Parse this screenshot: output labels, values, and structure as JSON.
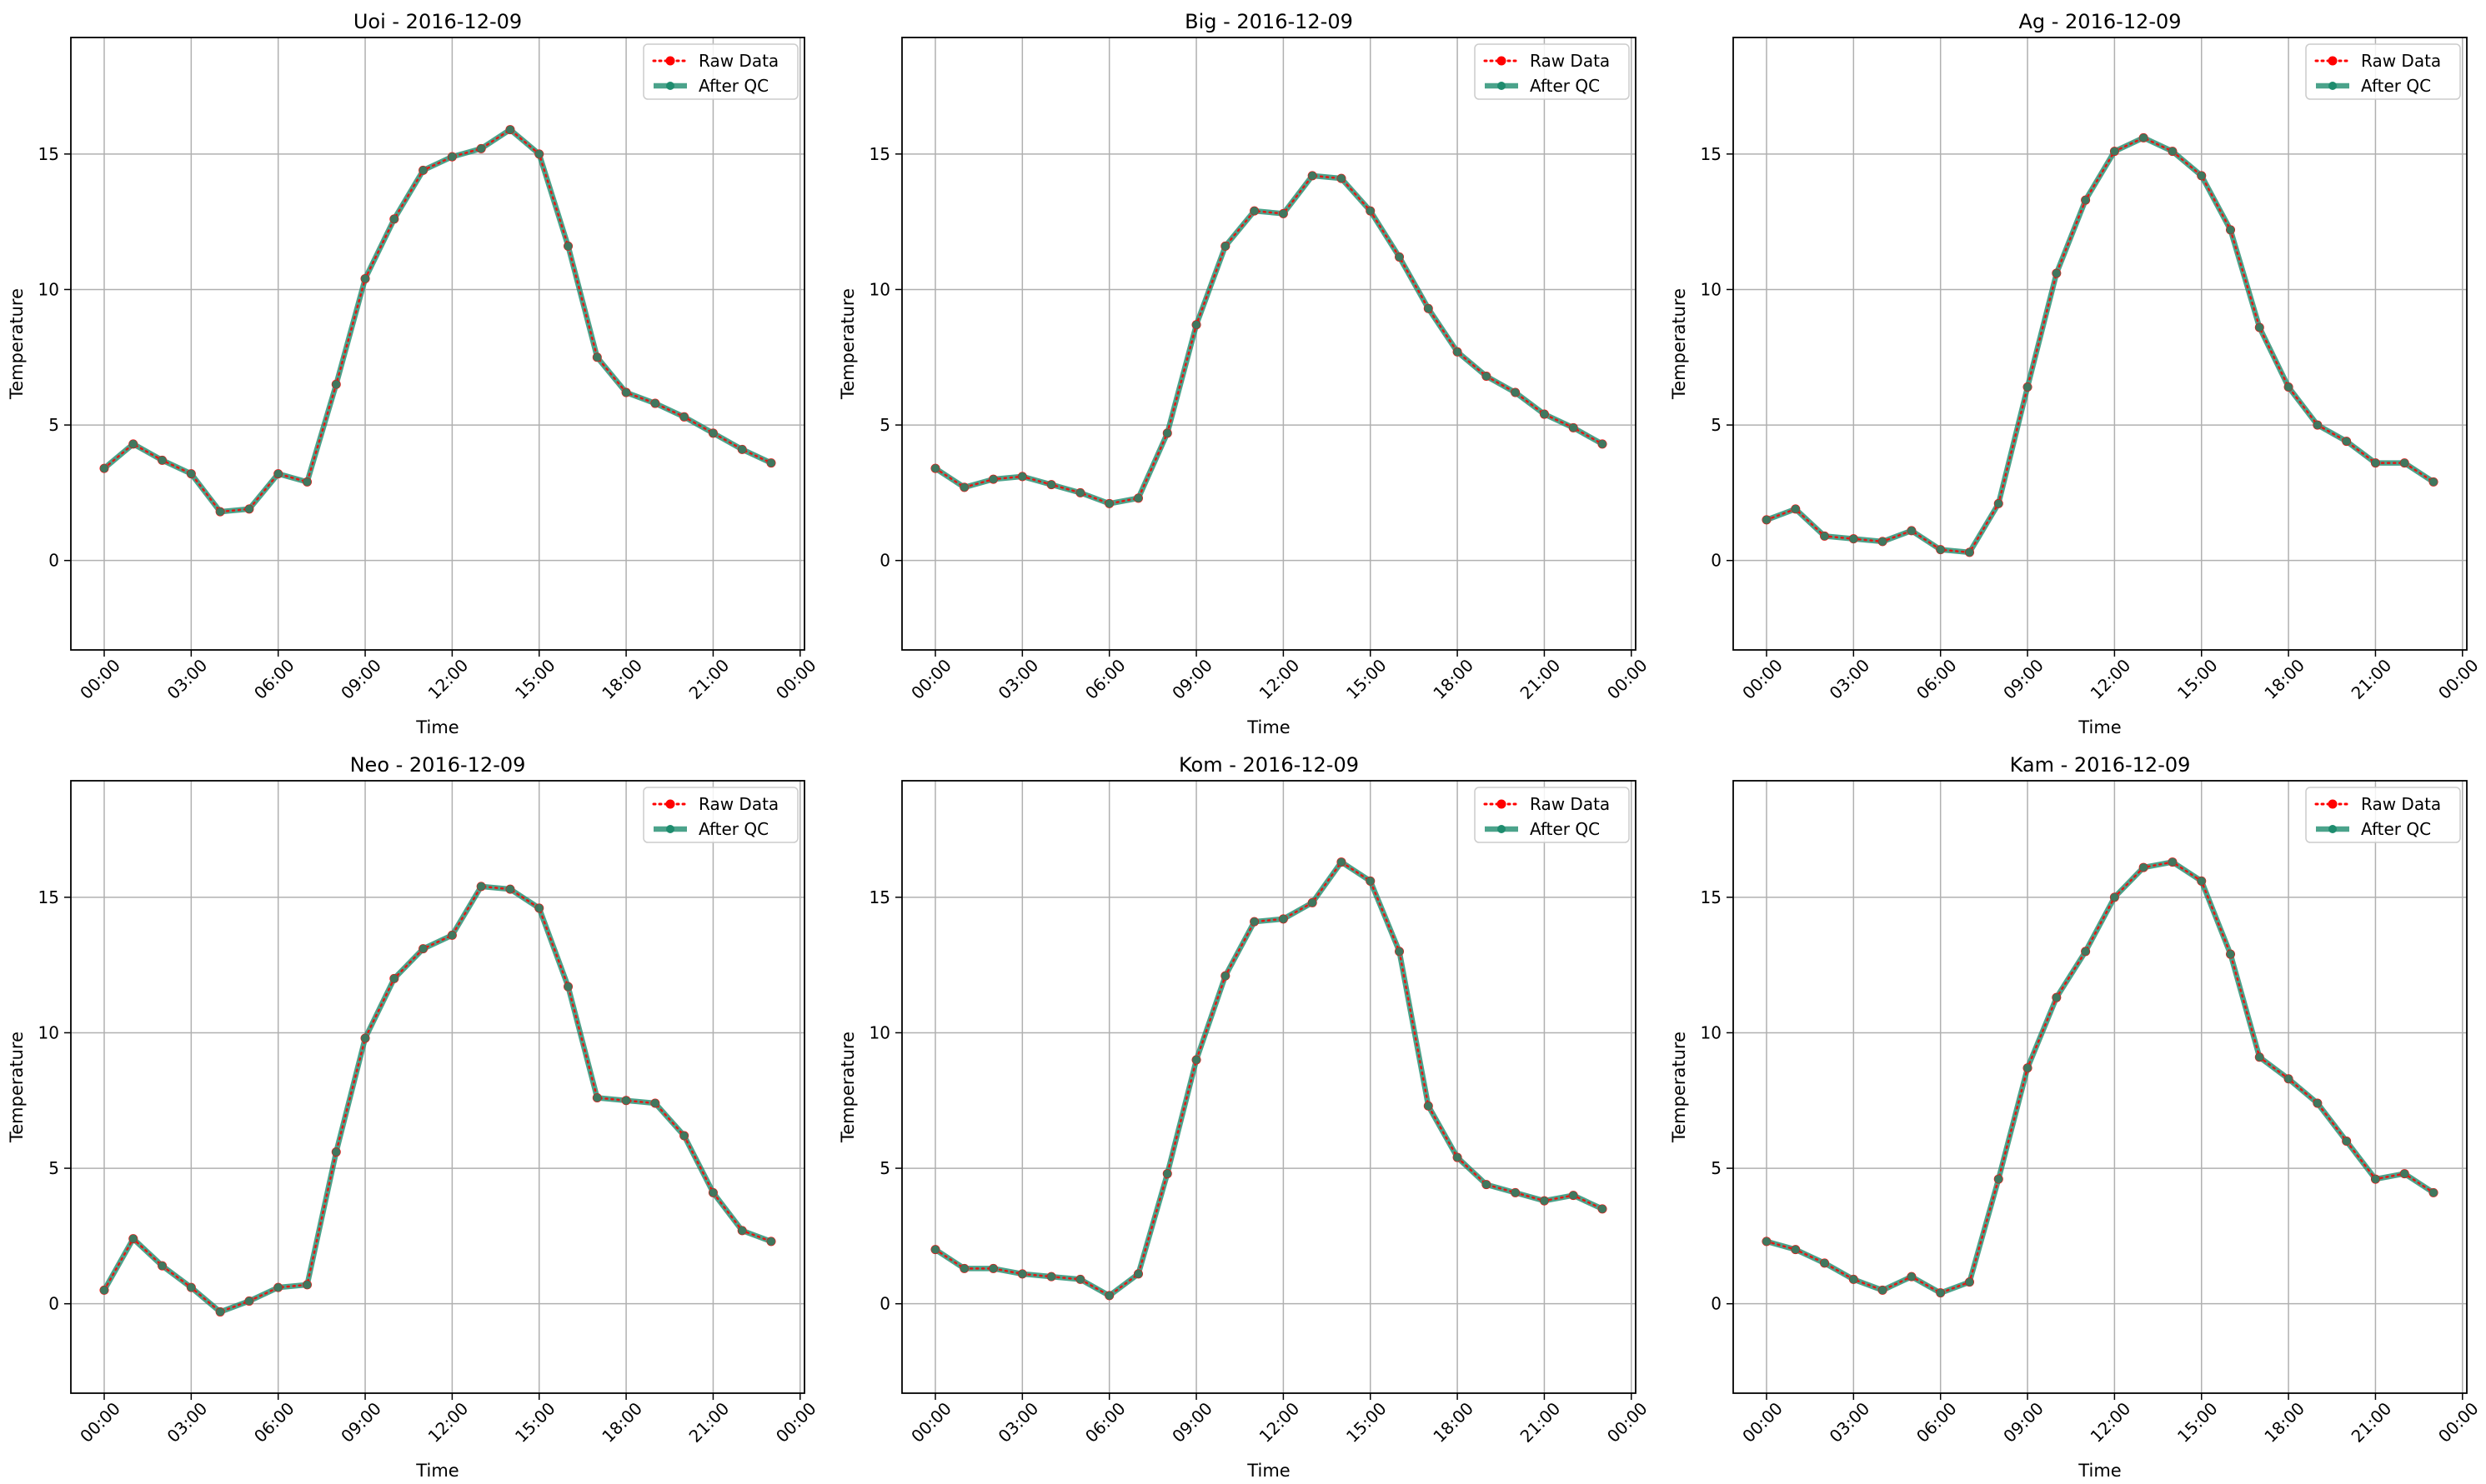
{
  "figure": {
    "background": "#ffffff",
    "colors": {
      "raw": "#ff0000",
      "qc": "#1e8c6e",
      "grid": "#b0b0b0",
      "axis": "#000000"
    }
  },
  "chart_data": [
    {
      "type": "line",
      "title": "Uoi - 2016-12-09",
      "xlabel": "Time",
      "ylabel": "Temperature",
      "x_ticks": [
        "00:00",
        "03:00",
        "06:00",
        "09:00",
        "12:00",
        "15:00",
        "18:00",
        "21:00",
        "00:00"
      ],
      "y_ticks": [
        "0",
        "5",
        "10",
        "15"
      ],
      "xlim": [
        -1.15,
        24.15
      ],
      "ylim": [
        -3.3,
        19.3
      ],
      "grid": true,
      "legend_position": "top-right",
      "x": [
        0,
        1,
        2,
        3,
        4,
        5,
        6,
        7,
        8,
        9,
        10,
        11,
        12,
        13,
        14,
        15,
        16,
        17,
        18,
        19,
        20,
        21,
        22,
        23
      ],
      "series": [
        {
          "name": "Raw Data",
          "style": "dotted",
          "values": [
            3.4,
            4.3,
            3.7,
            3.2,
            1.8,
            1.9,
            3.2,
            2.9,
            6.5,
            10.4,
            12.6,
            14.4,
            14.9,
            15.2,
            15.9,
            15.0,
            11.6,
            7.5,
            6.2,
            5.8,
            5.3,
            4.7,
            4.1,
            3.6
          ]
        },
        {
          "name": "After QC",
          "style": "solid",
          "values": [
            3.4,
            4.3,
            3.7,
            3.2,
            1.8,
            1.9,
            3.2,
            2.9,
            6.5,
            10.4,
            12.6,
            14.4,
            14.9,
            15.2,
            15.9,
            15.0,
            11.6,
            7.5,
            6.2,
            5.8,
            5.3,
            4.7,
            4.1,
            3.6
          ]
        }
      ]
    },
    {
      "type": "line",
      "title": "Big - 2016-12-09",
      "xlabel": "Time",
      "ylabel": "Temperature",
      "x_ticks": [
        "00:00",
        "03:00",
        "06:00",
        "09:00",
        "12:00",
        "15:00",
        "18:00",
        "21:00",
        "00:00"
      ],
      "y_ticks": [
        "0",
        "5",
        "10",
        "15"
      ],
      "xlim": [
        -1.15,
        24.15
      ],
      "ylim": [
        -3.3,
        19.3
      ],
      "grid": true,
      "legend_position": "top-right",
      "x": [
        0,
        1,
        2,
        3,
        4,
        5,
        6,
        7,
        8,
        9,
        10,
        11,
        12,
        13,
        14,
        15,
        16,
        17,
        18,
        19,
        20,
        21,
        22,
        23
      ],
      "series": [
        {
          "name": "Raw Data",
          "style": "dotted",
          "values": [
            3.4,
            2.7,
            3.0,
            3.1,
            2.8,
            2.5,
            2.1,
            2.3,
            4.7,
            8.7,
            11.6,
            12.9,
            12.8,
            14.2,
            14.1,
            12.9,
            11.2,
            9.3,
            7.7,
            6.8,
            6.2,
            5.4,
            4.9,
            4.3
          ]
        },
        {
          "name": "After QC",
          "style": "solid",
          "values": [
            3.4,
            2.7,
            3.0,
            3.1,
            2.8,
            2.5,
            2.1,
            2.3,
            4.7,
            8.7,
            11.6,
            12.9,
            12.8,
            14.2,
            14.1,
            12.9,
            11.2,
            9.3,
            7.7,
            6.8,
            6.2,
            5.4,
            4.9,
            4.3
          ]
        }
      ]
    },
    {
      "type": "line",
      "title": "Ag - 2016-12-09",
      "xlabel": "Time",
      "ylabel": "Temperature",
      "x_ticks": [
        "00:00",
        "03:00",
        "06:00",
        "09:00",
        "12:00",
        "15:00",
        "18:00",
        "21:00",
        "00:00"
      ],
      "y_ticks": [
        "0",
        "5",
        "10",
        "15"
      ],
      "xlim": [
        -1.15,
        24.15
      ],
      "ylim": [
        -3.3,
        19.3
      ],
      "grid": true,
      "legend_position": "top-right",
      "x": [
        0,
        1,
        2,
        3,
        4,
        5,
        6,
        7,
        8,
        9,
        10,
        11,
        12,
        13,
        14,
        15,
        16,
        17,
        18,
        19,
        20,
        21,
        22,
        23
      ],
      "series": [
        {
          "name": "Raw Data",
          "style": "dotted",
          "values": [
            1.5,
            1.9,
            0.9,
            0.8,
            0.7,
            1.1,
            0.4,
            0.3,
            2.1,
            6.4,
            10.6,
            13.3,
            15.1,
            15.6,
            15.1,
            14.2,
            12.2,
            8.6,
            6.4,
            5.0,
            4.4,
            3.6,
            3.6,
            2.9
          ]
        },
        {
          "name": "After QC",
          "style": "solid",
          "values": [
            1.5,
            1.9,
            0.9,
            0.8,
            0.7,
            1.1,
            0.4,
            0.3,
            2.1,
            6.4,
            10.6,
            13.3,
            15.1,
            15.6,
            15.1,
            14.2,
            12.2,
            8.6,
            6.4,
            5.0,
            4.4,
            3.6,
            3.6,
            2.9
          ]
        }
      ]
    },
    {
      "type": "line",
      "title": "Neo - 2016-12-09",
      "xlabel": "Time",
      "ylabel": "Temperature",
      "x_ticks": [
        "00:00",
        "03:00",
        "06:00",
        "09:00",
        "12:00",
        "15:00",
        "18:00",
        "21:00",
        "00:00"
      ],
      "y_ticks": [
        "0",
        "5",
        "10",
        "15"
      ],
      "xlim": [
        -1.15,
        24.15
      ],
      "ylim": [
        -3.3,
        19.3
      ],
      "grid": true,
      "legend_position": "top-right",
      "x": [
        0,
        1,
        2,
        3,
        4,
        5,
        6,
        7,
        8,
        9,
        10,
        11,
        12,
        13,
        14,
        15,
        16,
        17,
        18,
        19,
        20,
        21,
        22,
        23
      ],
      "series": [
        {
          "name": "Raw Data",
          "style": "dotted",
          "values": [
            0.5,
            2.4,
            1.4,
            0.6,
            -0.3,
            0.1,
            0.6,
            0.7,
            5.6,
            9.8,
            12.0,
            13.1,
            13.6,
            15.4,
            15.3,
            14.6,
            11.7,
            7.6,
            7.5,
            7.4,
            6.2,
            4.1,
            2.7,
            2.3
          ]
        },
        {
          "name": "After QC",
          "style": "solid",
          "values": [
            0.5,
            2.4,
            1.4,
            0.6,
            -0.3,
            0.1,
            0.6,
            0.7,
            5.6,
            9.8,
            12.0,
            13.1,
            13.6,
            15.4,
            15.3,
            14.6,
            11.7,
            7.6,
            7.5,
            7.4,
            6.2,
            4.1,
            2.7,
            2.3
          ]
        }
      ]
    },
    {
      "type": "line",
      "title": "Kom - 2016-12-09",
      "xlabel": "Time",
      "ylabel": "Temperature",
      "x_ticks": [
        "00:00",
        "03:00",
        "06:00",
        "09:00",
        "12:00",
        "15:00",
        "18:00",
        "21:00",
        "00:00"
      ],
      "y_ticks": [
        "0",
        "5",
        "10",
        "15"
      ],
      "xlim": [
        -1.15,
        24.15
      ],
      "ylim": [
        -3.3,
        19.3
      ],
      "grid": true,
      "legend_position": "top-right",
      "x": [
        0,
        1,
        2,
        3,
        4,
        5,
        6,
        7,
        8,
        9,
        10,
        11,
        12,
        13,
        14,
        15,
        16,
        17,
        18,
        19,
        20,
        21,
        22,
        23
      ],
      "series": [
        {
          "name": "Raw Data",
          "style": "dotted",
          "values": [
            2.0,
            1.3,
            1.3,
            1.1,
            1.0,
            0.9,
            0.3,
            1.1,
            4.8,
            9.0,
            12.1,
            14.1,
            14.2,
            14.8,
            16.3,
            15.6,
            13.0,
            7.3,
            5.4,
            4.4,
            4.1,
            3.8,
            4.0,
            3.5
          ]
        },
        {
          "name": "After QC",
          "style": "solid",
          "values": [
            2.0,
            1.3,
            1.3,
            1.1,
            1.0,
            0.9,
            0.3,
            1.1,
            4.8,
            9.0,
            12.1,
            14.1,
            14.2,
            14.8,
            16.3,
            15.6,
            13.0,
            7.3,
            5.4,
            4.4,
            4.1,
            3.8,
            4.0,
            3.5
          ]
        }
      ]
    },
    {
      "type": "line",
      "title": "Kam - 2016-12-09",
      "xlabel": "Time",
      "ylabel": "Temperature",
      "x_ticks": [
        "00:00",
        "03:00",
        "06:00",
        "09:00",
        "12:00",
        "15:00",
        "18:00",
        "21:00",
        "00:00"
      ],
      "y_ticks": [
        "0",
        "5",
        "10",
        "15"
      ],
      "xlim": [
        -1.15,
        24.15
      ],
      "ylim": [
        -3.3,
        19.3
      ],
      "grid": true,
      "legend_position": "top-right",
      "x": [
        0,
        1,
        2,
        3,
        4,
        5,
        6,
        7,
        8,
        9,
        10,
        11,
        12,
        13,
        14,
        15,
        16,
        17,
        18,
        19,
        20,
        21,
        22,
        23
      ],
      "series": [
        {
          "name": "Raw Data",
          "style": "dotted",
          "values": [
            2.3,
            2.0,
            1.5,
            0.9,
            0.5,
            1.0,
            0.4,
            0.8,
            4.6,
            8.7,
            11.3,
            13.0,
            15.0,
            16.1,
            16.3,
            15.6,
            12.9,
            9.1,
            8.3,
            7.4,
            6.0,
            4.6,
            4.8,
            4.1
          ]
        },
        {
          "name": "After QC",
          "style": "solid",
          "values": [
            2.3,
            2.0,
            1.5,
            0.9,
            0.5,
            1.0,
            0.4,
            0.8,
            4.6,
            8.7,
            11.3,
            13.0,
            15.0,
            16.1,
            16.3,
            15.6,
            12.9,
            9.1,
            8.3,
            7.4,
            6.0,
            4.6,
            4.8,
            4.1
          ]
        }
      ]
    }
  ]
}
